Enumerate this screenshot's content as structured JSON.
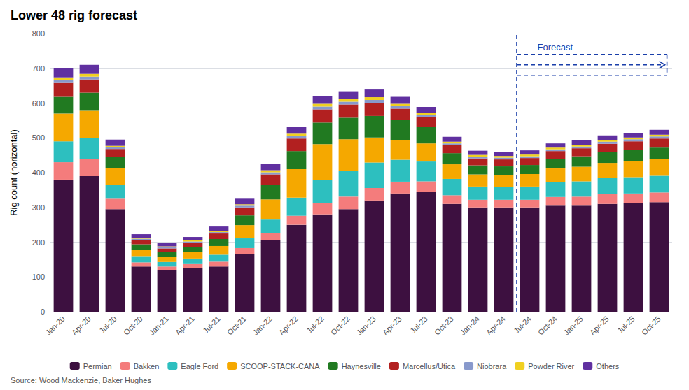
{
  "chart_data": {
    "type": "bar",
    "title": "Lower 48 rig forecast",
    "ylabel": "Rig count (horizontal)",
    "source": "Source: Wood Mackenzie, Baker Hughes",
    "stacked": true,
    "grid": true,
    "legend": "bottom",
    "annotations": [
      {
        "text": "Forecast",
        "start": "Jul-24"
      }
    ],
    "categories": [
      "Jan-20",
      "Apr-20",
      "Jul-20",
      "Oct-20",
      "Jan-21",
      "Apr-21",
      "Jul-21",
      "Oct-21",
      "Jan-22",
      "Apr-22",
      "Jul-22",
      "Oct-22",
      "Jan-23",
      "Apr-23",
      "Jul-23",
      "Oct-23",
      "Jan-24",
      "Apr-24",
      "Jul-24",
      "Oct-24",
      "Jan-25",
      "Apr-25",
      "Jul-25",
      "Oct-25"
    ],
    "series": [
      {
        "name": "Permian",
        "color": "#3d1040",
        "values": [
          380,
          390,
          295,
          130,
          120,
          125,
          130,
          165,
          205,
          250,
          280,
          295,
          320,
          340,
          345,
          310,
          300,
          300,
          300,
          305,
          305,
          310,
          312,
          315
        ]
      },
      {
        "name": "Bakken",
        "color": "#f47c7c",
        "values": [
          50,
          50,
          30,
          12,
          10,
          12,
          14,
          18,
          22,
          26,
          32,
          36,
          36,
          34,
          30,
          25,
          22,
          22,
          22,
          25,
          26,
          28,
          28,
          28
        ]
      },
      {
        "name": "Eagle Ford",
        "color": "#2dbfbf",
        "values": [
          60,
          60,
          40,
          18,
          13,
          16,
          20,
          28,
          38,
          52,
          68,
          73,
          73,
          63,
          57,
          47,
          38,
          37,
          38,
          42,
          44,
          46,
          47,
          48
        ]
      },
      {
        "name": "SCOOP-STACK-CANA",
        "color": "#f5a800",
        "values": [
          80,
          78,
          48,
          18,
          15,
          18,
          25,
          38,
          58,
          82,
          102,
          92,
          72,
          57,
          52,
          42,
          35,
          33,
          36,
          40,
          42,
          44,
          46,
          48
        ]
      },
      {
        "name": "Haynesville",
        "color": "#217a21",
        "values": [
          48,
          52,
          32,
          16,
          13,
          15,
          20,
          28,
          42,
          52,
          62,
          62,
          62,
          57,
          47,
          32,
          26,
          26,
          26,
          28,
          30,
          31,
          32,
          33
        ]
      },
      {
        "name": "Marcellus/Utica",
        "color": "#b22020",
        "values": [
          40,
          38,
          23,
          13,
          11,
          13,
          16,
          23,
          30,
          36,
          38,
          38,
          38,
          33,
          28,
          23,
          20,
          20,
          20,
          22,
          23,
          24,
          25,
          26
        ]
      },
      {
        "name": "Niobrara",
        "color": "#8899cc",
        "values": [
          8,
          8,
          5,
          3,
          3,
          3,
          4,
          5,
          6,
          7,
          8,
          8,
          8,
          7,
          6,
          5,
          5,
          5,
          5,
          5,
          5,
          6,
          6,
          6
        ]
      },
      {
        "name": "Powder River",
        "color": "#f0d020",
        "values": [
          8,
          8,
          4,
          3,
          3,
          3,
          4,
          4,
          6,
          7,
          8,
          8,
          8,
          7,
          6,
          5,
          5,
          5,
          5,
          5,
          5,
          5,
          5,
          5
        ]
      },
      {
        "name": "Others",
        "color": "#6030a0",
        "values": [
          26,
          26,
          18,
          10,
          10,
          10,
          12,
          16,
          18,
          20,
          22,
          22,
          22,
          20,
          18,
          14,
          12,
          12,
          12,
          12,
          13,
          13,
          13,
          14
        ]
      }
    ],
    "ylim": [
      0,
      800
    ],
    "yticks": [
      0,
      100,
      200,
      300,
      400,
      500,
      600,
      700,
      800
    ]
  }
}
